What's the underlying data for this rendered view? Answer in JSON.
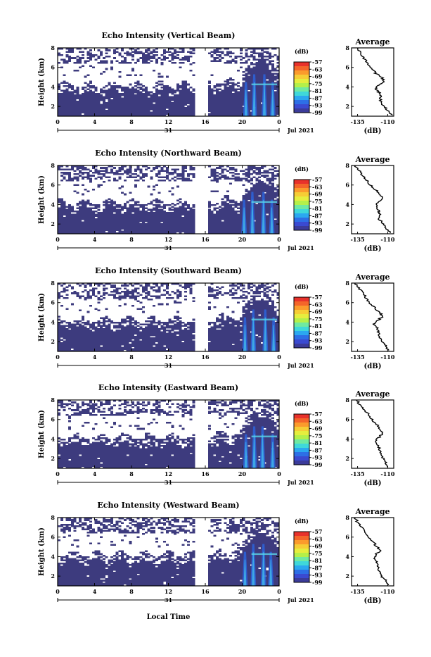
{
  "chart_data": {
    "type": "heatmap",
    "date_label": "Jul 2021",
    "day_label": "31",
    "xlabel_bottom": "Local Time",
    "ylabel": "Height (km)",
    "x_ticks": [
      "0",
      "4",
      "8",
      "12",
      "16",
      "20",
      "0"
    ],
    "y_ticks": [
      "2",
      "4",
      "6",
      "8"
    ],
    "xlim_hours": [
      0,
      24
    ],
    "ylim_km": [
      1,
      8
    ],
    "data_gap_hours": [
      14.8,
      16.2
    ],
    "colorbar": {
      "unit": "(dB)",
      "labels": [
        "-57",
        "-63",
        "-69",
        "-75",
        "-81",
        "-87",
        "-93",
        "-99"
      ],
      "colors": [
        "#e8322b",
        "#f4652a",
        "#fb9b2c",
        "#f6cd35",
        "#e6ee3e",
        "#b4f04a",
        "#6fe9a2",
        "#3fd8da",
        "#2ba8f0",
        "#2d6fe6",
        "#3a4ad1",
        "#3b3b9a"
      ]
    },
    "profile_plot": {
      "title": "Average",
      "xlabel": "(dB)",
      "x_ticks": [
        "-135",
        "-110"
      ],
      "y_ticks": [
        "2",
        "4",
        "6",
        "8"
      ],
      "xlim_db": [
        -140,
        -105
      ],
      "ylim_km": [
        1,
        8
      ]
    },
    "panels": [
      {
        "title": "Echo Intensity (Vertical Beam)",
        "rain_bands_hours": [
          20.4,
          21.3,
          22.4,
          23.3
        ],
        "profile": [
          [
            1.1,
            -107
          ],
          [
            1.6,
            -110
          ],
          [
            2.0,
            -113
          ],
          [
            2.5,
            -116
          ],
          [
            3.0,
            -116
          ],
          [
            3.4,
            -117
          ],
          [
            3.8,
            -120
          ],
          [
            4.2,
            -117
          ],
          [
            4.6,
            -113
          ],
          [
            5.0,
            -115
          ],
          [
            5.4,
            -120
          ],
          [
            5.8,
            -123
          ],
          [
            6.3,
            -126
          ],
          [
            6.8,
            -129
          ],
          [
            7.4,
            -132
          ],
          [
            8.0,
            -135
          ]
        ]
      },
      {
        "title": "Echo Intensity (Northward Beam)",
        "rain_bands_hours": [
          20.2,
          21.1,
          22.3,
          23.2
        ],
        "profile": [
          [
            1.1,
            -108
          ],
          [
            1.6,
            -111
          ],
          [
            2.0,
            -114
          ],
          [
            2.5,
            -117
          ],
          [
            3.0,
            -116
          ],
          [
            3.4,
            -118
          ],
          [
            3.8,
            -120
          ],
          [
            4.2,
            -118
          ],
          [
            4.6,
            -114
          ],
          [
            5.0,
            -116
          ],
          [
            5.5,
            -120
          ],
          [
            6.0,
            -124
          ],
          [
            6.5,
            -128
          ],
          [
            7.0,
            -131
          ],
          [
            7.5,
            -134
          ],
          [
            8.0,
            -137
          ]
        ]
      },
      {
        "title": "Echo Intensity (Southward Beam)",
        "rain_bands_hours": [
          20.3,
          21.2,
          22.5,
          23.4
        ],
        "profile": [
          [
            1.1,
            -109
          ],
          [
            1.6,
            -112
          ],
          [
            2.0,
            -115
          ],
          [
            2.5,
            -117
          ],
          [
            3.0,
            -118
          ],
          [
            3.4,
            -119
          ],
          [
            3.8,
            -121
          ],
          [
            4.2,
            -118
          ],
          [
            4.6,
            -114
          ],
          [
            5.0,
            -117
          ],
          [
            5.5,
            -121
          ],
          [
            6.0,
            -125
          ],
          [
            6.5,
            -128
          ],
          [
            7.0,
            -131
          ],
          [
            7.5,
            -134
          ],
          [
            8.0,
            -137
          ]
        ]
      },
      {
        "title": "Echo Intensity (Eastward Beam)",
        "rain_bands_hours": [
          20.4,
          21.3,
          22.2,
          23.3
        ],
        "profile": [
          [
            1.1,
            -109
          ],
          [
            1.6,
            -112
          ],
          [
            2.0,
            -114
          ],
          [
            2.5,
            -116
          ],
          [
            3.0,
            -117
          ],
          [
            3.4,
            -118
          ],
          [
            3.8,
            -120
          ],
          [
            4.2,
            -117
          ],
          [
            4.6,
            -114
          ],
          [
            5.0,
            -116
          ],
          [
            5.5,
            -119
          ],
          [
            6.0,
            -123
          ],
          [
            6.5,
            -126
          ],
          [
            7.0,
            -129
          ],
          [
            7.5,
            -133
          ],
          [
            8.0,
            -136
          ]
        ]
      },
      {
        "title": "Echo Intensity (Westward Beam)",
        "rain_bands_hours": [
          20.3,
          21.2,
          22.3,
          23.1
        ],
        "profile": [
          [
            1.1,
            -110
          ],
          [
            1.6,
            -112
          ],
          [
            2.0,
            -115
          ],
          [
            2.5,
            -117
          ],
          [
            3.0,
            -118
          ],
          [
            3.4,
            -119
          ],
          [
            3.8,
            -121
          ],
          [
            4.2,
            -120
          ],
          [
            4.6,
            -116
          ],
          [
            5.0,
            -119
          ],
          [
            5.5,
            -122
          ],
          [
            6.0,
            -126
          ],
          [
            6.5,
            -129
          ],
          [
            7.0,
            -132
          ],
          [
            7.5,
            -135
          ],
          [
            8.0,
            -137
          ]
        ]
      }
    ]
  }
}
